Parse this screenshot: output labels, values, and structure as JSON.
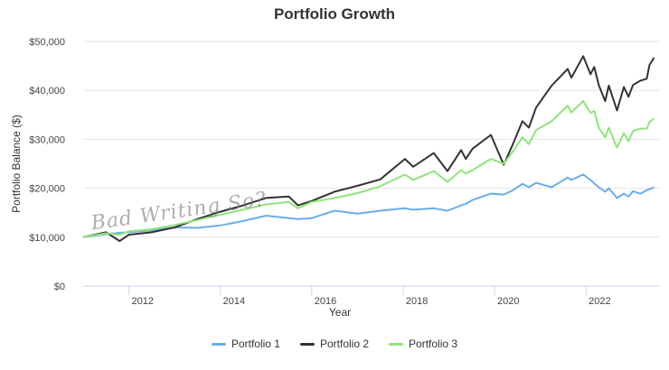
{
  "chart_data": {
    "type": "line",
    "title": "Portfolio Growth",
    "xlabel": "Year",
    "ylabel": "Portfolio Balance ($)",
    "xlim": [
      2011.0,
      2023.5
    ],
    "ylim": [
      0,
      50000
    ],
    "x_ticks": [
      2012,
      2014,
      2016,
      2018,
      2020,
      2022
    ],
    "y_ticks": [
      0,
      10000,
      20000,
      30000,
      40000,
      50000
    ],
    "y_tick_labels": [
      "$0",
      "$10,000",
      "$20,000",
      "$30,000",
      "$40,000",
      "$50,000"
    ],
    "grid": "horizontal",
    "legend_position": "bottom",
    "x": [
      2011.0,
      2011.5,
      2011.8,
      2012.0,
      2012.5,
      2013.0,
      2013.5,
      2014.0,
      2014.5,
      2015.0,
      2015.5,
      2015.7,
      2016.0,
      2016.5,
      2017.0,
      2017.5,
      2018.04,
      2018.22,
      2018.67,
      2018.97,
      2019.27,
      2019.37,
      2019.52,
      2019.92,
      2020.2,
      2020.4,
      2020.61,
      2020.75,
      2020.91,
      2021.25,
      2021.6,
      2021.68,
      2021.94,
      2022.1,
      2022.18,
      2022.28,
      2022.42,
      2022.5,
      2022.68,
      2022.83,
      2022.93,
      2023.03,
      2023.19,
      2023.33,
      2023.39,
      2023.49
    ],
    "series": [
      {
        "name": "Portfolio 1",
        "color": "#6aaee8",
        "values": [
          10000,
          10600,
          10900,
          11000,
          11400,
          12000,
          11900,
          12400,
          13300,
          14400,
          13900,
          13700,
          13900,
          15400,
          14800,
          15400,
          15900,
          15600,
          15900,
          15400,
          16500,
          16800,
          17600,
          18900,
          18700,
          19600,
          20900,
          20200,
          21100,
          20200,
          22200,
          21700,
          22800,
          21700,
          21000,
          20200,
          19300,
          20000,
          18000,
          18900,
          18300,
          19400,
          18900,
          19600,
          19800,
          20200
        ]
      },
      {
        "name": "Portfolio 2",
        "color": "#333333",
        "values": [
          10000,
          11000,
          9200,
          10500,
          11000,
          12000,
          13700,
          15200,
          16500,
          18000,
          18300,
          16500,
          17400,
          19300,
          20500,
          21800,
          26000,
          24400,
          27200,
          23500,
          27800,
          26000,
          28100,
          30900,
          24800,
          29000,
          33700,
          32400,
          36500,
          41000,
          44400,
          42600,
          47000,
          43300,
          44800,
          41100,
          37800,
          41000,
          35900,
          40700,
          38700,
          41100,
          42000,
          42400,
          45200,
          46700
        ]
      },
      {
        "name": "Portfolio 3",
        "color": "#8ee57a",
        "values": [
          10000,
          10800,
          10500,
          11200,
          11600,
          12500,
          13500,
          14600,
          15600,
          16700,
          17200,
          15900,
          17200,
          18000,
          19000,
          20400,
          22800,
          21700,
          23500,
          21300,
          23700,
          23000,
          23700,
          26000,
          25000,
          27500,
          30400,
          29000,
          31900,
          33700,
          36900,
          35500,
          37800,
          35400,
          35800,
          32400,
          30400,
          32400,
          28300,
          31300,
          29600,
          31700,
          32200,
          32200,
          33500,
          34300
        ]
      }
    ]
  },
  "watermark": "Bad Writing So?"
}
